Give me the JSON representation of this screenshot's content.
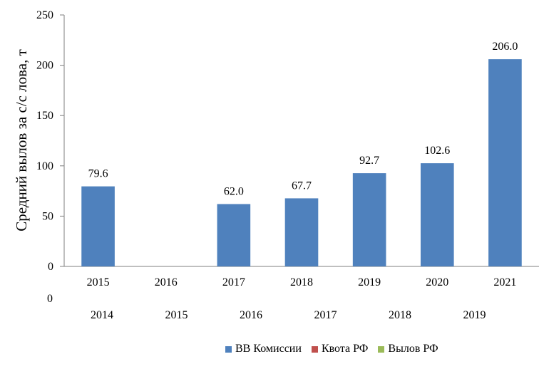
{
  "chart_data": {
    "type": "bar",
    "categories": [
      "2015",
      "2016",
      "2017",
      "2018",
      "2019",
      "2020",
      "2021"
    ],
    "secondary_categories": [
      "2014",
      "2015",
      "2016",
      "2017",
      "2018",
      "2019"
    ],
    "series": [
      {
        "name": "ВВ Комиссии",
        "color": "#4F81BD",
        "values": [
          79.6,
          null,
          62.0,
          67.7,
          92.7,
          102.6,
          206.0
        ],
        "labels": [
          "79.6",
          "",
          "62.0",
          "67.7",
          "92.7",
          "102.6",
          "206.0"
        ]
      },
      {
        "name": "Квота РФ",
        "color": "#C0504D",
        "values": [
          null,
          null,
          null,
          null,
          null,
          null,
          null
        ]
      },
      {
        "name": "Вылов РФ",
        "color": "#9BBB59",
        "values": [
          null,
          null,
          null,
          null,
          null,
          null,
          null
        ]
      }
    ],
    "ylabel": "Средний вылов за с/с лова, т",
    "ylim": [
      0,
      250
    ],
    "yticks": [
      "0",
      "50",
      "100",
      "150",
      "200",
      "250"
    ],
    "secondary_axis_fragment": "0",
    "grid": false,
    "legend_position": "bottom"
  }
}
